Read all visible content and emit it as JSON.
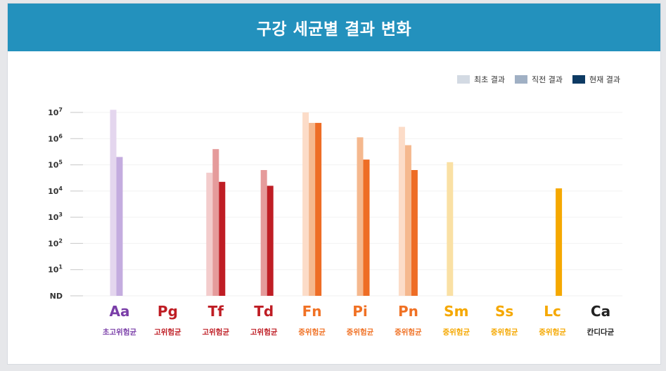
{
  "header": {
    "title": "구강 세균별 결과 변화"
  },
  "legend": [
    {
      "label": "최초 결과",
      "color": "#d3dae3"
    },
    {
      "label": "직전 결과",
      "color": "#a0b0c4"
    },
    {
      "label": "현재 결과",
      "color": "#0d3a63"
    }
  ],
  "chart_data": {
    "type": "bar",
    "scale": "log",
    "ylim": [
      0,
      7
    ],
    "yticks": [
      {
        "value": 0,
        "label": "ND",
        "sup": ""
      },
      {
        "value": 1,
        "label": "10",
        "sup": "1"
      },
      {
        "value": 2,
        "label": "10",
        "sup": "2"
      },
      {
        "value": 3,
        "label": "10",
        "sup": "3"
      },
      {
        "value": 4,
        "label": "10",
        "sup": "4"
      },
      {
        "value": 5,
        "label": "10",
        "sup": "5"
      },
      {
        "value": 6,
        "label": "10",
        "sup": "6"
      },
      {
        "value": 7,
        "label": "10",
        "sup": "7"
      }
    ],
    "grid": true,
    "legend_position": "top-right",
    "series_names": [
      "최초 결과",
      "직전 결과",
      "현재 결과"
    ],
    "categories": [
      {
        "name": "Aa",
        "group": "초고위험균",
        "color": "#7a3ea8",
        "colors": [
          "#e4d6ee",
          "#c4acdf",
          "#a37ac9"
        ],
        "values": [
          7.4,
          5.3,
          null
        ]
      },
      {
        "name": "Pg",
        "group": "고위험균",
        "color": "#bf1d24",
        "colors": [
          "#f3cccc",
          "#e59b9b",
          "#bf1d24"
        ],
        "values": [
          null,
          null,
          null
        ]
      },
      {
        "name": "Tf",
        "group": "고위험균",
        "color": "#bf1d24",
        "colors": [
          "#f3cccc",
          "#e59b9b",
          "#bf1d24"
        ],
        "values": [
          4.7,
          5.6,
          4.35
        ]
      },
      {
        "name": "Td",
        "group": "고위험균",
        "color": "#bf1d24",
        "colors": [
          "#f3cccc",
          "#e59b9b",
          "#bf1d24"
        ],
        "values": [
          null,
          4.8,
          4.2
        ]
      },
      {
        "name": "Fn",
        "group": "중위험균",
        "color": "#f07124",
        "colors": [
          "#fcdcc8",
          "#f5b88e",
          "#ee6d25"
        ],
        "values": [
          7.0,
          6.6,
          6.6
        ]
      },
      {
        "name": "Pi",
        "group": "중위험균",
        "color": "#f07124",
        "colors": [
          "#fcdcc8",
          "#f5b88e",
          "#ee6d25"
        ],
        "values": [
          null,
          6.05,
          5.2
        ]
      },
      {
        "name": "Pn",
        "group": "중위험균",
        "color": "#f07124",
        "colors": [
          "#fcdcc8",
          "#f5b88e",
          "#ee6d25"
        ],
        "values": [
          6.45,
          5.75,
          4.8
        ]
      },
      {
        "name": "Sm",
        "group": "중위험균",
        "color": "#f5a800",
        "colors": [
          "#fae0a4",
          "#f7cf6f",
          "#f5a800"
        ],
        "values": [
          5.1,
          null,
          null
        ]
      },
      {
        "name": "Ss",
        "group": "중위험균",
        "color": "#f5a800",
        "colors": [
          "#fae0a4",
          "#f7cf6f",
          "#f5a800"
        ],
        "values": [
          null,
          null,
          null
        ]
      },
      {
        "name": "Lc",
        "group": "중위험균",
        "color": "#f5a800",
        "colors": [
          "#fae0a4",
          "#f7cf6f",
          "#f5a800"
        ],
        "values": [
          null,
          null,
          4.1
        ]
      },
      {
        "name": "Ca",
        "group": "칸디다균",
        "color": "#222222",
        "colors": [
          "#dddddd",
          "#aaaaaa",
          "#222222"
        ],
        "values": [
          null,
          null,
          null
        ]
      }
    ]
  }
}
